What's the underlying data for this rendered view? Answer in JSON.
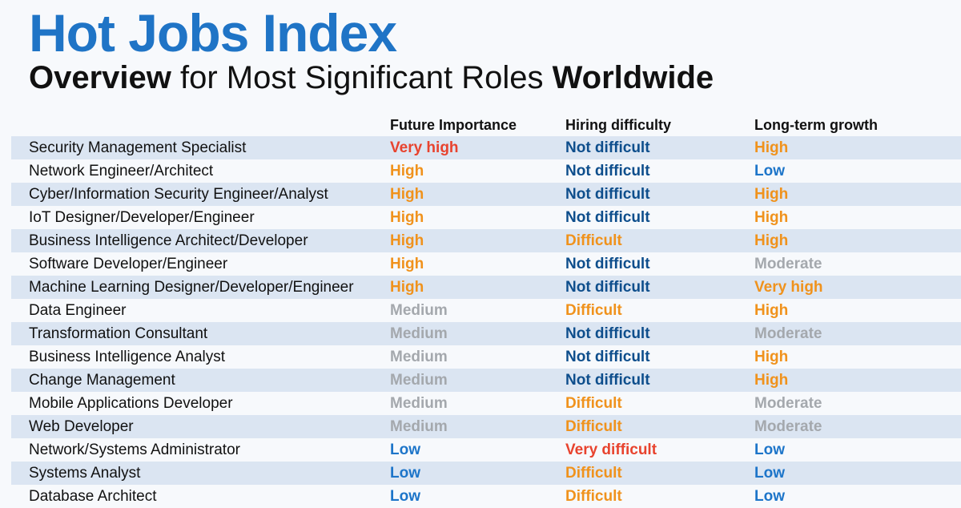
{
  "header": {
    "title": "Hot Jobs Index",
    "subtitle_bold_1": "Overview",
    "subtitle_regular": " for Most Significant Roles ",
    "subtitle_bold_2": "Worldwide"
  },
  "columns": {
    "importance": "Future Importance",
    "hiring": "Hiring difficulty",
    "growth": "Long-term growth"
  },
  "colors": {
    "title": "#1f74c6",
    "Very high": "#e8432e",
    "High": "#f0921c",
    "Medium": "#a4a8ad",
    "Moderate": "#a4a8ad",
    "Low": "#1d75c9",
    "Not difficult": "#0e4e8c",
    "Difficult": "#f0921c",
    "Very difficult": "#e8432e",
    "growth_Very high": "#f0921c"
  },
  "rows": [
    {
      "role": "Security Management Specialist",
      "importance": "Very high",
      "hiring": "Not difficult",
      "growth": "High"
    },
    {
      "role": "Network Engineer/Architect",
      "importance": "High",
      "hiring": "Not difficult",
      "growth": "Low"
    },
    {
      "role": "Cyber/Information Security Engineer/Analyst",
      "importance": "High",
      "hiring": "Not difficult",
      "growth": "High"
    },
    {
      "role": "IoT Designer/Developer/Engineer",
      "importance": "High",
      "hiring": "Not difficult",
      "growth": "High"
    },
    {
      "role": "Business Intelligence Architect/Developer",
      "importance": "High",
      "hiring": "Difficult",
      "growth": "High"
    },
    {
      "role": "Software Developer/Engineer",
      "importance": "High",
      "hiring": "Not difficult",
      "growth": "Moderate"
    },
    {
      "role": "Machine Learning Designer/Developer/Engineer",
      "importance": "High",
      "hiring": "Not difficult",
      "growth": "Very high"
    },
    {
      "role": "Data Engineer",
      "importance": "Medium",
      "hiring": "Difficult",
      "growth": "High"
    },
    {
      "role": "Transformation Consultant",
      "importance": "Medium",
      "hiring": "Not difficult",
      "growth": "Moderate"
    },
    {
      "role": "Business Intelligence Analyst",
      "importance": "Medium",
      "hiring": "Not difficult",
      "growth": "High"
    },
    {
      "role": "Change Management",
      "importance": "Medium",
      "hiring": "Not difficult",
      "growth": "High"
    },
    {
      "role": "Mobile Applications Developer",
      "importance": "Medium",
      "hiring": "Difficult",
      "growth": "Moderate"
    },
    {
      "role": "Web Developer",
      "importance": "Medium",
      "hiring": "Difficult",
      "growth": "Moderate"
    },
    {
      "role": "Network/Systems Administrator",
      "importance": "Low",
      "hiring": "Very difficult",
      "growth": "Low"
    },
    {
      "role": "Systems Analyst",
      "importance": "Low",
      "hiring": "Difficult",
      "growth": "Low"
    },
    {
      "role": "Database Architect",
      "importance": "Low",
      "hiring": "Difficult",
      "growth": "Low"
    }
  ]
}
